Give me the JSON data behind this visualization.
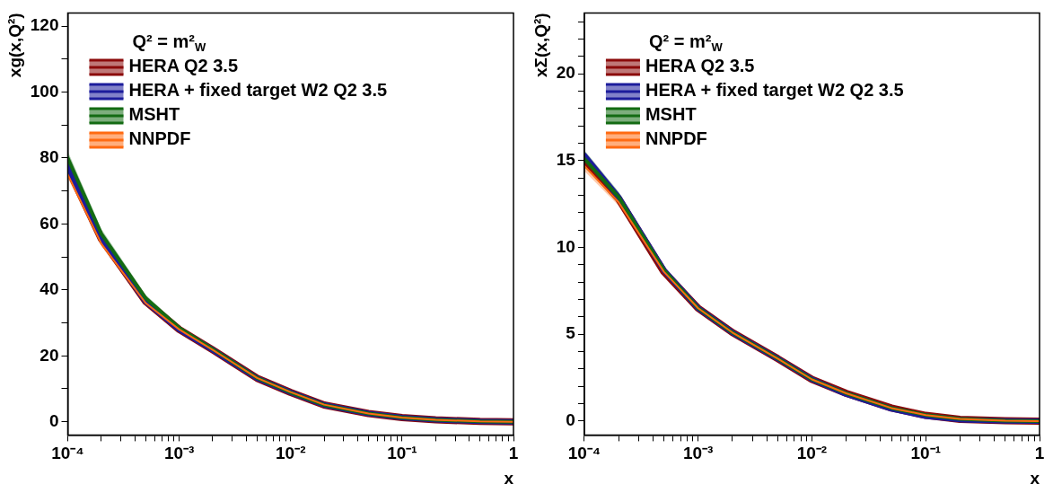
{
  "chart_data": [
    {
      "type": "line",
      "ylabel": "xg(x,Q²)",
      "xlabel": "x",
      "legend_title": "Q² = m²$_{W}$",
      "legend": "top left",
      "log": "x",
      "grid": false,
      "marker": "none",
      "line_style": "solid",
      "x": [
        0.0001,
        0.0002,
        0.0005,
        0.001,
        0.002,
        0.005,
        0.01,
        0.02,
        0.05,
        0.1,
        0.2,
        0.5,
        1
      ],
      "xlim": [
        0.0001,
        1
      ],
      "xticks": [
        {
          "value": 0.0001,
          "label": "10⁻⁴"
        },
        {
          "value": 0.0002,
          "label": null
        },
        {
          "value": 0.0003,
          "label": null
        },
        {
          "value": 0.0004,
          "label": null
        },
        {
          "value": 0.0005,
          "label": null
        },
        {
          "value": 0.0006,
          "label": null
        },
        {
          "value": 0.0007,
          "label": null
        },
        {
          "value": 0.0008,
          "label": null
        },
        {
          "value": 0.0009,
          "label": null
        },
        {
          "value": 0.001,
          "label": "10⁻³"
        },
        {
          "value": 0.002,
          "label": null
        },
        {
          "value": 0.003,
          "label": null
        },
        {
          "value": 0.004,
          "label": null
        },
        {
          "value": 0.005,
          "label": null
        },
        {
          "value": 0.006,
          "label": null
        },
        {
          "value": 0.007,
          "label": null
        },
        {
          "value": 0.008,
          "label": null
        },
        {
          "value": 0.009,
          "label": null
        },
        {
          "value": 0.01,
          "label": "10⁻²"
        },
        {
          "value": 0.02,
          "label": null
        },
        {
          "value": 0.03,
          "label": null
        },
        {
          "value": 0.04,
          "label": null
        },
        {
          "value": 0.05,
          "label": null
        },
        {
          "value": 0.06,
          "label": null
        },
        {
          "value": 0.07,
          "label": null
        },
        {
          "value": 0.08,
          "label": null
        },
        {
          "value": 0.09,
          "label": null
        },
        {
          "value": 0.1,
          "label": "10⁻¹"
        },
        {
          "value": 0.2,
          "label": null
        },
        {
          "value": 0.3,
          "label": null
        },
        {
          "value": 0.4,
          "label": null
        },
        {
          "value": 0.5,
          "label": null
        },
        {
          "value": 0.6,
          "label": null
        },
        {
          "value": 0.7,
          "label": null
        },
        {
          "value": 0.8,
          "label": null
        },
        {
          "value": 0.9,
          "label": null
        },
        1
      ],
      "ylim": [
        -4,
        124
      ],
      "yticks": [
        0,
        {
          "value": 10,
          "label": null
        },
        20,
        {
          "value": 30,
          "label": null
        },
        40,
        {
          "value": 50,
          "label": null
        },
        60,
        {
          "value": 70,
          "label": null
        },
        80,
        {
          "value": 90,
          "label": null
        },
        100,
        {
          "value": 110,
          "label": null
        },
        120
      ],
      "series": [
        {
          "name": "HERA Q2 3.5",
          "color": "#8b0a0a",
          "values": [
            77,
            55.5,
            36.5,
            28,
            21.8,
            13.2,
            8.9,
            5.1,
            2.5,
            1.3,
            0.6,
            0.1,
            0
          ]
        },
        {
          "name": "HERA + fixed target W2 Q2 3.5",
          "color": "#1c1c9c",
          "values": [
            77.5,
            55.5,
            36.5,
            28,
            21.8,
            13.2,
            8.9,
            5.1,
            2.5,
            1.3,
            0.6,
            0.1,
            0
          ]
        },
        {
          "name": "MSHT",
          "color": "#136b13",
          "values": [
            80,
            57,
            37.5,
            28.5,
            22,
            13.3,
            8.9,
            5.1,
            2.5,
            1.3,
            0.6,
            0.1,
            0
          ],
          "lower": [
            78,
            55.5,
            36.5,
            27.8,
            21.4,
            12.9,
            8.6,
            4.9,
            2.4,
            1.2,
            0.55,
            0.08,
            0
          ],
          "upper": [
            82,
            58.5,
            38.5,
            29.2,
            22.6,
            13.7,
            9.2,
            5.3,
            2.6,
            1.4,
            0.65,
            0.12,
            0
          ]
        },
        {
          "name": "NNPDF",
          "color": "#ff6b12",
          "values": [
            75,
            54,
            36,
            28,
            21.8,
            13.3,
            9,
            5.2,
            2.5,
            1.3,
            0.6,
            0.1,
            0
          ],
          "lower": [
            74,
            53.3,
            35.6,
            27.7,
            21.5,
            13.1,
            8.8,
            5.1,
            2.4,
            1.25,
            0.55,
            0.08,
            0
          ],
          "upper": [
            76,
            54.7,
            36.4,
            28.3,
            22.1,
            13.5,
            9.2,
            5.3,
            2.6,
            1.35,
            0.65,
            0.12,
            0
          ]
        }
      ]
    },
    {
      "type": "line",
      "ylabel": "xΣ(x,Q²)",
      "xlabel": "x",
      "legend_title": "Q² = m²$_{W}$",
      "legend": "top left",
      "log": "x",
      "grid": false,
      "marker": "none",
      "line_style": "solid",
      "x": [
        0.0001,
        0.0002,
        0.0005,
        0.001,
        0.002,
        0.005,
        0.01,
        0.02,
        0.05,
        0.1,
        0.2,
        0.5,
        1
      ],
      "xlim": [
        0.0001,
        1
      ],
      "xticks": [
        {
          "value": 0.0001,
          "label": "10⁻⁴"
        },
        {
          "value": 0.0002,
          "label": null
        },
        {
          "value": 0.0003,
          "label": null
        },
        {
          "value": 0.0004,
          "label": null
        },
        {
          "value": 0.0005,
          "label": null
        },
        {
          "value": 0.0006,
          "label": null
        },
        {
          "value": 0.0007,
          "label": null
        },
        {
          "value": 0.0008,
          "label": null
        },
        {
          "value": 0.0009,
          "label": null
        },
        {
          "value": 0.001,
          "label": "10⁻³"
        },
        {
          "value": 0.002,
          "label": null
        },
        {
          "value": 0.003,
          "label": null
        },
        {
          "value": 0.004,
          "label": null
        },
        {
          "value": 0.005,
          "label": null
        },
        {
          "value": 0.006,
          "label": null
        },
        {
          "value": 0.007,
          "label": null
        },
        {
          "value": 0.008,
          "label": null
        },
        {
          "value": 0.009,
          "label": null
        },
        {
          "value": 0.01,
          "label": "10⁻²"
        },
        {
          "value": 0.02,
          "label": null
        },
        {
          "value": 0.03,
          "label": null
        },
        {
          "value": 0.04,
          "label": null
        },
        {
          "value": 0.05,
          "label": null
        },
        {
          "value": 0.06,
          "label": null
        },
        {
          "value": 0.07,
          "label": null
        },
        {
          "value": 0.08,
          "label": null
        },
        {
          "value": 0.09,
          "label": null
        },
        {
          "value": 0.1,
          "label": "10⁻¹"
        },
        {
          "value": 0.2,
          "label": null
        },
        {
          "value": 0.3,
          "label": null
        },
        {
          "value": 0.4,
          "label": null
        },
        {
          "value": 0.5,
          "label": null
        },
        {
          "value": 0.6,
          "label": null
        },
        {
          "value": 0.7,
          "label": null
        },
        {
          "value": 0.8,
          "label": null
        },
        {
          "value": 0.9,
          "label": null
        },
        1
      ],
      "ylim": [
        -0.8,
        23.5
      ],
      "yticks": [
        0,
        {
          "value": 1,
          "label": null
        },
        {
          "value": 2,
          "label": null
        },
        {
          "value": 3,
          "label": null
        },
        {
          "value": 4,
          "label": null
        },
        5,
        {
          "value": 6,
          "label": null
        },
        {
          "value": 7,
          "label": null
        },
        {
          "value": 8,
          "label": null
        },
        {
          "value": 9,
          "label": null
        },
        10,
        {
          "value": 11,
          "label": null
        },
        {
          "value": 12,
          "label": null
        },
        {
          "value": 13,
          "label": null
        },
        {
          "value": 14,
          "label": null
        },
        15,
        {
          "value": 16,
          "label": null
        },
        {
          "value": 17,
          "label": null
        },
        {
          "value": 18,
          "label": null
        },
        {
          "value": 19,
          "label": null
        },
        20,
        {
          "value": 21,
          "label": null
        },
        {
          "value": 22,
          "label": null
        },
        {
          "value": 23,
          "label": null
        }
      ],
      "series": [
        {
          "name": "HERA Q2 3.5",
          "color": "#8b0a0a",
          "values": [
            15,
            12.8,
            8.6,
            6.5,
            5.1,
            3.6,
            2.4,
            1.6,
            0.75,
            0.33,
            0.1,
            0.02,
            0
          ]
        },
        {
          "name": "HERA + fixed target W2 Q2 3.5",
          "color": "#1c1c9c",
          "values": [
            15.3,
            12.9,
            8.7,
            6.5,
            5.1,
            3.6,
            2.4,
            1.55,
            0.7,
            0.28,
            0.08,
            0.01,
            0
          ]
        },
        {
          "name": "MSHT",
          "color": "#136b13",
          "values": [
            15.1,
            12.9,
            8.7,
            6.5,
            5.1,
            3.6,
            2.4,
            1.6,
            0.75,
            0.35,
            0.12,
            0.02,
            0
          ],
          "lower": [
            14.6,
            12.6,
            8.5,
            6.35,
            5,
            3.52,
            2.35,
            1.56,
            0.72,
            0.32,
            0.1,
            0.01,
            0
          ],
          "upper": [
            15.6,
            13.2,
            8.9,
            6.65,
            5.2,
            3.68,
            2.45,
            1.64,
            0.78,
            0.38,
            0.14,
            0.03,
            0
          ]
        },
        {
          "name": "NNPDF",
          "color": "#ff6b12",
          "values": [
            14.7,
            12.6,
            8.6,
            6.5,
            5.1,
            3.6,
            2.4,
            1.6,
            0.75,
            0.35,
            0.12,
            0.02,
            0
          ],
          "lower": [
            14.4,
            12.4,
            8.5,
            6.4,
            5.05,
            3.55,
            2.37,
            1.57,
            0.72,
            0.32,
            0.1,
            0.01,
            0
          ],
          "upper": [
            15,
            12.8,
            8.7,
            6.6,
            5.15,
            3.65,
            2.43,
            1.63,
            0.78,
            0.38,
            0.14,
            0.03,
            0
          ]
        }
      ]
    }
  ]
}
